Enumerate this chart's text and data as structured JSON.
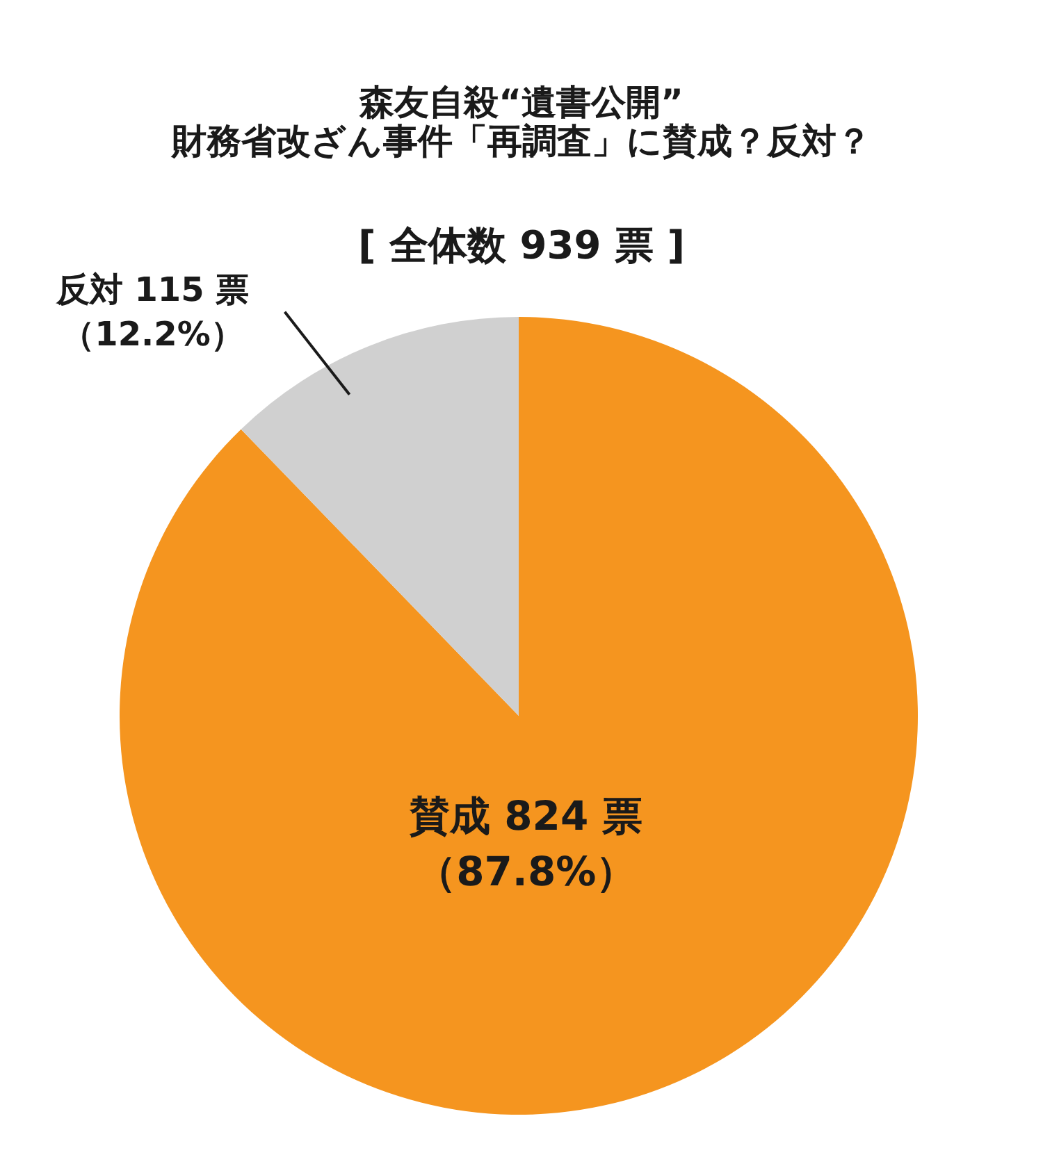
{
  "chart_data": {
    "type": "pie",
    "title": "森友自殺“遺書公開”\n財務省改ざん事件「再調査」に賛成？反対？",
    "subtitle": "[ 全体数 939 票 ]",
    "categories": [
      "賛成",
      "反対"
    ],
    "values": [
      824,
      115
    ],
    "colors": [
      "#f5951f",
      "#d0d0d0"
    ],
    "value_labels": [
      "824 票（87.8%）",
      "115 票（12.2%）"
    ]
  }
}
